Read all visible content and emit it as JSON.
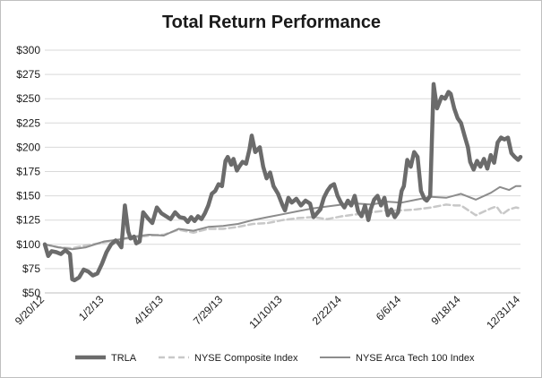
{
  "chart_data": {
    "type": "line",
    "title": "Total Return Performance",
    "xlabel": "",
    "ylabel": "",
    "ylim": [
      50,
      300
    ],
    "yticks": [
      50,
      75,
      100,
      125,
      150,
      175,
      200,
      225,
      250,
      275,
      300
    ],
    "ytick_labels": [
      "$50",
      "$75",
      "$100",
      "$125",
      "$150",
      "$175",
      "$200",
      "$225",
      "$250",
      "$275",
      "$300"
    ],
    "xlim": [
      0,
      832
    ],
    "xticks": [
      0,
      104,
      208,
      312,
      416,
      520,
      624,
      728,
      832
    ],
    "xtick_labels": [
      "9/20/12",
      "1/2/13",
      "4/16/13",
      "7/29/13",
      "11/10/13",
      "2/22/14",
      "6/6/14",
      "9/18/14",
      "12/31/14"
    ],
    "grid": "horizontal",
    "legend_position": "bottom",
    "series": [
      {
        "name": "TRLA",
        "color": "#6b6b6b",
        "style": "solid-thick",
        "x": [
          0,
          6,
          12,
          20,
          28,
          36,
          44,
          48,
          52,
          60,
          68,
          76,
          84,
          92,
          100,
          108,
          116,
          124,
          128,
          134,
          140,
          146,
          150,
          156,
          160,
          166,
          172,
          180,
          188,
          196,
          204,
          212,
          220,
          228,
          236,
          244,
          250,
          256,
          262,
          268,
          274,
          280,
          286,
          292,
          298,
          304,
          310,
          316,
          320,
          326,
          330,
          336,
          340,
          346,
          352,
          358,
          362,
          368,
          376,
          382,
          388,
          394,
          400,
          408,
          416,
          420,
          426,
          432,
          440,
          448,
          456,
          464,
          470,
          476,
          482,
          488,
          494,
          500,
          506,
          512,
          518,
          524,
          530,
          536,
          542,
          548,
          554,
          560,
          566,
          570,
          576,
          582,
          588,
          594,
          600,
          606,
          612,
          618,
          624,
          628,
          634,
          640,
          646,
          652,
          658,
          664,
          668,
          674,
          680,
          686,
          690,
          694,
          700,
          706,
          710,
          716,
          722,
          728,
          734,
          740,
          744,
          750,
          756,
          762,
          768,
          774,
          780,
          786,
          792,
          798,
          804,
          810,
          816,
          822,
          828,
          832
        ],
        "y": [
          100,
          88,
          93,
          92,
          90,
          94,
          90,
          64,
          63,
          66,
          74,
          72,
          68,
          70,
          80,
          92,
          100,
          104,
          102,
          97,
          140,
          113,
          106,
          108,
          101,
          103,
          133,
          127,
          122,
          138,
          132,
          129,
          126,
          133,
          128,
          127,
          123,
          128,
          124,
          129,
          126,
          132,
          140,
          152,
          155,
          162,
          160,
          186,
          190,
          182,
          188,
          176,
          180,
          185,
          183,
          198,
          212,
          195,
          200,
          180,
          168,
          174,
          160,
          152,
          140,
          135,
          148,
          143,
          147,
          140,
          145,
          142,
          128,
          132,
          136,
          148,
          155,
          160,
          162,
          150,
          143,
          138,
          145,
          140,
          150,
          134,
          129,
          140,
          125,
          136,
          146,
          150,
          140,
          148,
          130,
          136,
          128,
          133,
          155,
          160,
          187,
          180,
          195,
          190,
          155,
          147,
          145,
          150,
          265,
          240,
          246,
          252,
          250,
          257,
          255,
          240,
          230,
          225,
          212,
          200,
          185,
          177,
          186,
          180,
          188,
          178,
          192,
          184,
          205,
          210,
          208,
          210,
          194,
          190,
          187,
          190
        ]
      },
      {
        "name": "NYSE Composite Index",
        "color": "#c8c8c8",
        "style": "dashed",
        "x": [
          0,
          24,
          48,
          72,
          104,
          130,
          156,
          182,
          208,
          234,
          260,
          286,
          312,
          338,
          364,
          390,
          416,
          442,
          468,
          494,
          520,
          546,
          572,
          598,
          624,
          650,
          676,
          702,
          718,
          728,
          754,
          780,
          790,
          800,
          812,
          824,
          832
        ],
        "y": [
          100,
          97,
          96,
          99,
          102,
          105,
          107,
          109,
          110,
          115,
          112,
          116,
          116,
          118,
          121,
          122,
          125,
          127,
          128,
          126,
          129,
          131,
          133,
          135,
          135,
          136,
          138,
          141,
          140,
          140,
          130,
          137,
          139,
          131,
          136,
          138,
          137
        ]
      },
      {
        "name": "NYSE Arca Tech 100 Index",
        "color": "#8c8c8c",
        "style": "solid-thin",
        "x": [
          0,
          24,
          48,
          72,
          104,
          130,
          156,
          182,
          208,
          234,
          260,
          286,
          312,
          338,
          364,
          390,
          416,
          442,
          468,
          494,
          520,
          546,
          572,
          598,
          624,
          650,
          676,
          702,
          728,
          754,
          780,
          796,
          812,
          824,
          832
        ],
        "y": [
          100,
          97,
          95,
          97,
          103,
          105,
          108,
          110,
          109,
          116,
          114,
          118,
          119,
          121,
          125,
          128,
          131,
          134,
          137,
          139,
          141,
          142,
          141,
          144,
          143,
          146,
          149,
          148,
          152,
          146,
          153,
          159,
          156,
          160,
          160
        ]
      }
    ]
  }
}
